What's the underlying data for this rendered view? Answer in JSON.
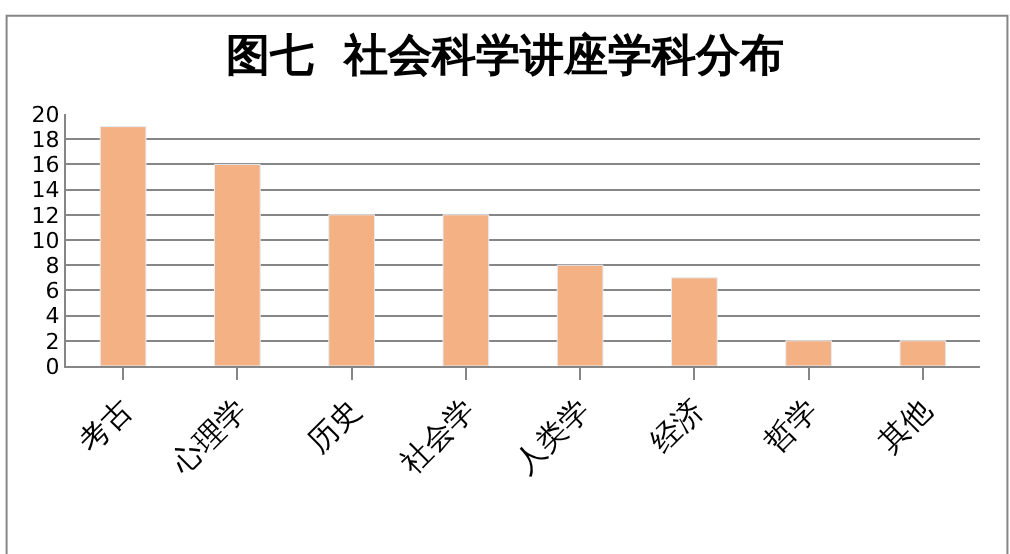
{
  "chart_data": {
    "type": "bar",
    "title": "图七  社会科学讲座学科分布",
    "categories": [
      "考古",
      "心理学",
      "历史",
      "社会学",
      "人类学",
      "经济",
      "哲学",
      "其他"
    ],
    "values": [
      19,
      16,
      12,
      12,
      8,
      7,
      2,
      2
    ],
    "color": "#f4b183",
    "ylim": [
      0,
      20
    ],
    "yticks": [
      0,
      2,
      4,
      6,
      8,
      10,
      12,
      14,
      16,
      18,
      20
    ],
    "grid": "y",
    "legend": false
  }
}
